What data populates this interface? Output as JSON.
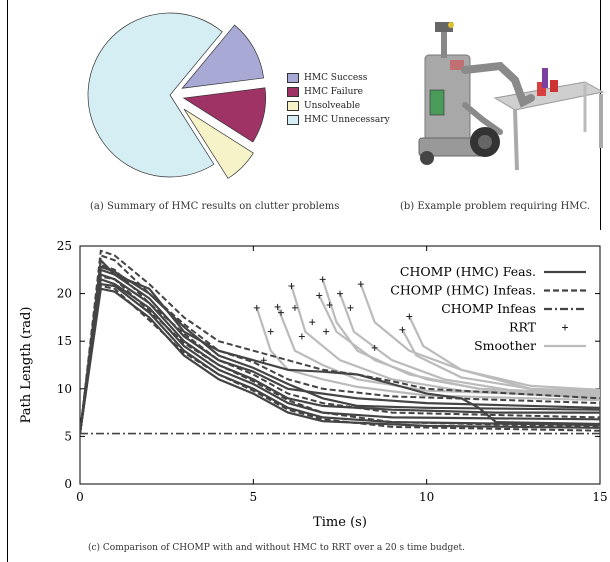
{
  "captions": {
    "a": "(a) Summary of HMC results on clutter problems",
    "b": "(b) Example problem requiring HMC.",
    "c": "(c) Comparison of CHOMP with and without HMC to RRT over a 20 s time budget."
  },
  "chart_data": [
    {
      "type": "pie",
      "exploded": true,
      "labels": [
        "HMC Success",
        "HMC Failure",
        "Unsolveable",
        "HMC Unnecessary"
      ],
      "values": [
        12,
        11,
        7,
        70
      ],
      "colors": [
        "#a9a9d5",
        "#a03366",
        "#f6f3c8",
        "#d5eef4"
      ],
      "legend_position": "right"
    },
    {
      "type": "line",
      "xlabel": "Time (s)",
      "ylabel": "Path Length (rad)",
      "xlim": [
        0,
        15
      ],
      "ylim": [
        0,
        25
      ],
      "xticks": [
        "0",
        "5",
        "10",
        "15"
      ],
      "yticks": [
        "0",
        "5",
        "10",
        "15",
        "20",
        "25"
      ],
      "legend_position": "top-right",
      "series": [
        {
          "name": "CHOMP (HMC) Feas.",
          "style": "solid",
          "color": "#444444"
        },
        {
          "name": "CHOMP (HMC) Infeas.",
          "style": "dashed",
          "color": "#444444"
        },
        {
          "name": "CHOMP Infeas",
          "style": "dashdot",
          "color": "#444444"
        },
        {
          "name": "RRT",
          "style": "marker-plus",
          "color": "#222222"
        },
        {
          "name": "Smoother",
          "style": "solid",
          "color": "#bbbbbb"
        }
      ],
      "infeas_constant": 5.3,
      "rrt_points": [
        [
          5.1,
          18.5
        ],
        [
          5.3,
          13
        ],
        [
          5.5,
          16
        ],
        [
          5.7,
          18.6
        ],
        [
          5.8,
          18
        ],
        [
          6.1,
          20.8
        ],
        [
          6.2,
          18.5
        ],
        [
          6.4,
          15.5
        ],
        [
          6.7,
          17
        ],
        [
          6.9,
          19.8
        ],
        [
          7.0,
          21.5
        ],
        [
          7.1,
          16
        ],
        [
          7.2,
          18.8
        ],
        [
          7.5,
          20
        ],
        [
          7.8,
          18.5
        ],
        [
          8.1,
          21
        ],
        [
          8.5,
          14.3
        ],
        [
          9.3,
          16.2
        ],
        [
          9.5,
          17.6
        ]
      ],
      "smoother_curves": [
        [
          [
            5.1,
            18.5
          ],
          [
            5.5,
            14
          ],
          [
            6,
            12
          ],
          [
            7,
            11
          ],
          [
            8,
            10.2
          ],
          [
            10,
            9.3
          ],
          [
            15,
            8.8
          ]
        ],
        [
          [
            5.7,
            18.6
          ],
          [
            6.2,
            14
          ],
          [
            7,
            12.5
          ],
          [
            8,
            11
          ],
          [
            10,
            9.8
          ],
          [
            15,
            9.2
          ]
        ],
        [
          [
            6.1,
            20.8
          ],
          [
            6.5,
            16
          ],
          [
            7.5,
            13
          ],
          [
            9,
            11
          ],
          [
            11,
            9.8
          ],
          [
            15,
            9.0
          ]
        ],
        [
          [
            6.9,
            19.8
          ],
          [
            7.4,
            16
          ],
          [
            8.5,
            13
          ],
          [
            10,
            11
          ],
          [
            12,
            9.7
          ],
          [
            15,
            9.3
          ]
        ],
        [
          [
            7.0,
            21.5
          ],
          [
            7.4,
            17
          ],
          [
            8,
            14
          ],
          [
            9.5,
            11.5
          ],
          [
            11.5,
            10
          ],
          [
            15,
            9.5
          ]
        ],
        [
          [
            7.5,
            20
          ],
          [
            7.9,
            16
          ],
          [
            9,
            13
          ],
          [
            10.5,
            11
          ],
          [
            12.5,
            9.8
          ],
          [
            15,
            9.6
          ]
        ],
        [
          [
            8.1,
            21
          ],
          [
            8.5,
            17
          ],
          [
            9.5,
            14
          ],
          [
            11,
            12
          ],
          [
            13,
            10
          ],
          [
            15,
            9.8
          ]
        ],
        [
          [
            9.3,
            16.2
          ],
          [
            9.7,
            13.5
          ],
          [
            11,
            11.2
          ],
          [
            13,
            10
          ],
          [
            15,
            9.6
          ]
        ],
        [
          [
            9.5,
            17.6
          ],
          [
            9.9,
            14.5
          ],
          [
            11,
            12
          ],
          [
            13,
            10.3
          ],
          [
            15,
            9.9
          ]
        ]
      ],
      "feas_curves": [
        [
          [
            0.6,
            23.5
          ],
          [
            1,
            22
          ],
          [
            2,
            20.5
          ],
          [
            3,
            16
          ],
          [
            4,
            14
          ],
          [
            5,
            13
          ],
          [
            6,
            12
          ],
          [
            7,
            11.8
          ],
          [
            8,
            11.5
          ],
          [
            9,
            10.5
          ],
          [
            10,
            9.5
          ],
          [
            11,
            9
          ],
          [
            11.5,
            8
          ],
          [
            12,
            6.5
          ],
          [
            15,
            6.3
          ]
        ],
        [
          [
            0.6,
            22.5
          ],
          [
            1,
            22
          ],
          [
            2,
            19.5
          ],
          [
            3,
            15.5
          ],
          [
            4,
            13
          ],
          [
            5,
            11.8
          ],
          [
            6,
            10
          ],
          [
            7,
            9.5
          ],
          [
            8,
            9
          ],
          [
            10,
            8.5
          ],
          [
            15,
            8
          ]
        ],
        [
          [
            0.6,
            22
          ],
          [
            1,
            21.5
          ],
          [
            2,
            19
          ],
          [
            3,
            15
          ],
          [
            4,
            12.5
          ],
          [
            5,
            11
          ],
          [
            6,
            9
          ],
          [
            7,
            8.2
          ],
          [
            9,
            7.8
          ],
          [
            12,
            7.5
          ],
          [
            15,
            7.5
          ]
        ],
        [
          [
            0.6,
            21.5
          ],
          [
            1,
            21
          ],
          [
            2,
            18.5
          ],
          [
            3,
            14.5
          ],
          [
            4,
            12
          ],
          [
            5,
            10.5
          ],
          [
            6,
            8.5
          ],
          [
            7,
            7.5
          ],
          [
            9,
            7
          ],
          [
            15,
            6.8
          ]
        ],
        [
          [
            0.6,
            21
          ],
          [
            1,
            20.8
          ],
          [
            2,
            18
          ],
          [
            3,
            14
          ],
          [
            4,
            11.5
          ],
          [
            5,
            10
          ],
          [
            6,
            8
          ],
          [
            7,
            7
          ],
          [
            9,
            6.5
          ],
          [
            15,
            6.2
          ]
        ],
        [
          [
            0.6,
            20.5
          ],
          [
            1,
            20.2
          ],
          [
            2,
            17.5
          ],
          [
            3,
            13.5
          ],
          [
            4,
            11
          ],
          [
            5,
            9.5
          ],
          [
            6,
            7.5
          ],
          [
            7,
            6.6
          ],
          [
            10,
            6.1
          ],
          [
            15,
            5.9
          ]
        ],
        [
          [
            0.6,
            22.8
          ],
          [
            1,
            22.3
          ],
          [
            2,
            20
          ],
          [
            3,
            16.5
          ],
          [
            4,
            13.5
          ],
          [
            5,
            12.2
          ],
          [
            6,
            10.5
          ],
          [
            7,
            9
          ],
          [
            8,
            8.2
          ],
          [
            10,
            8
          ],
          [
            15,
            7.8
          ]
        ]
      ],
      "infeas_curves": [
        [
          [
            0.6,
            24.5
          ],
          [
            1,
            24
          ],
          [
            2,
            21
          ],
          [
            3,
            17.5
          ],
          [
            4,
            15
          ],
          [
            5,
            14
          ],
          [
            6,
            13
          ],
          [
            7,
            12
          ],
          [
            8,
            11.5
          ],
          [
            9,
            10.8
          ],
          [
            10,
            10
          ],
          [
            15,
            9
          ]
        ],
        [
          [
            0.6,
            24
          ],
          [
            1,
            23.5
          ],
          [
            2,
            20
          ],
          [
            3,
            16.8
          ],
          [
            4,
            14
          ],
          [
            5,
            12.8
          ],
          [
            6,
            11
          ],
          [
            7,
            10
          ],
          [
            9,
            9.2
          ],
          [
            15,
            8.5
          ]
        ],
        [
          [
            0.6,
            23
          ],
          [
            1,
            22.5
          ],
          [
            2,
            19
          ],
          [
            3,
            15.8
          ],
          [
            4,
            13
          ],
          [
            5,
            11.5
          ],
          [
            6,
            9.5
          ],
          [
            7,
            8.5
          ],
          [
            9,
            7.5
          ],
          [
            15,
            7
          ]
        ],
        [
          [
            0.6,
            21.8
          ],
          [
            1,
            21.5
          ],
          [
            2,
            18.2
          ],
          [
            3,
            14.8
          ],
          [
            4,
            12.5
          ],
          [
            5,
            10.8
          ],
          [
            6,
            8.8
          ],
          [
            7,
            7.5
          ],
          [
            9,
            6.5
          ],
          [
            15,
            6
          ]
        ],
        [
          [
            0.6,
            20.8
          ],
          [
            1,
            20.5
          ],
          [
            2,
            17.2
          ],
          [
            3,
            13.8
          ],
          [
            4,
            11.5
          ],
          [
            5,
            9.8
          ],
          [
            6,
            7.8
          ],
          [
            7,
            6.8
          ],
          [
            9,
            6
          ],
          [
            15,
            5.6
          ]
        ]
      ]
    }
  ]
}
